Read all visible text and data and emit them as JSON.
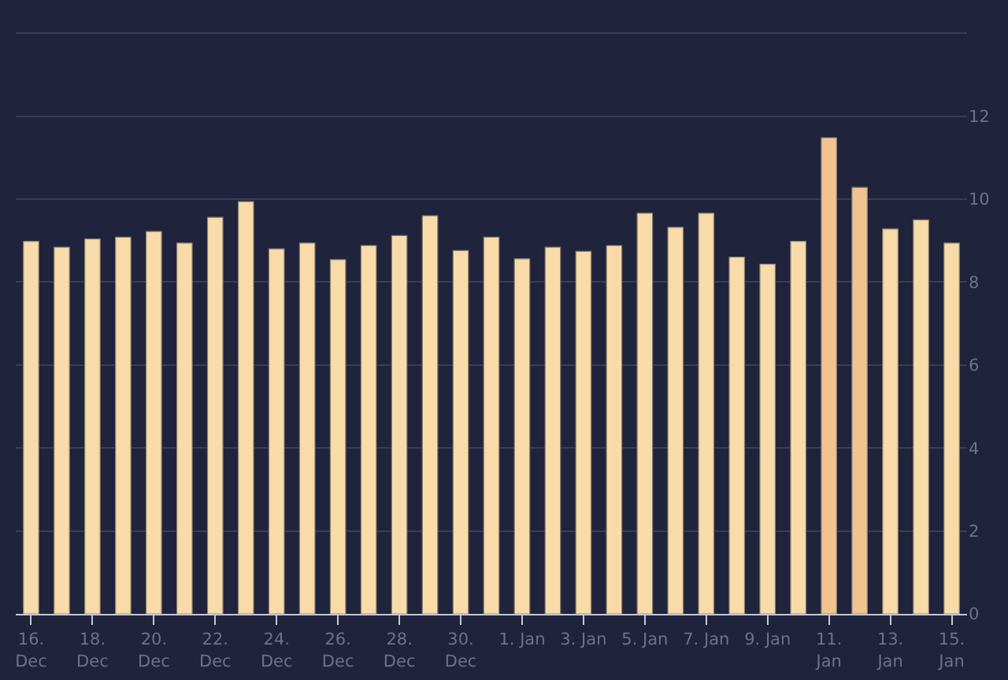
{
  "chart_data": {
    "type": "bar",
    "categories": [
      "16. Dec",
      null,
      "18. Dec",
      null,
      "20. Dec",
      null,
      "22. Dec",
      null,
      "24. Dec",
      null,
      "26. Dec",
      null,
      "28. Dec",
      null,
      "30. Dec",
      null,
      "1. Jan",
      null,
      "3. Jan",
      null,
      "5. Jan",
      null,
      "7. Jan",
      null,
      "9. Jan",
      null,
      "11. Jan",
      null,
      "13. Jan",
      null,
      "15. Jan"
    ],
    "values": [
      8.98,
      8.84,
      9.04,
      9.08,
      9.22,
      8.94,
      9.56,
      9.94,
      8.8,
      8.94,
      8.54,
      8.88,
      9.12,
      9.6,
      8.76,
      9.08,
      8.56,
      8.84,
      8.74,
      8.88,
      9.66,
      9.32,
      9.66,
      8.6,
      8.43,
      8.98,
      11.48,
      10.28,
      9.28,
      9.5,
      8.94
    ],
    "colors": [
      "#f8dba8",
      "#f8dba8",
      "#f8dba8",
      "#f8dba8",
      "#f8dba8",
      "#f8dba8",
      "#f8dba8",
      "#f8dba8",
      "#f8dba8",
      "#f8dba8",
      "#f8dba8",
      "#f8dba8",
      "#f8dba8",
      "#f8dba8",
      "#f8dba8",
      "#f8dba8",
      "#f8dba8",
      "#f8dba8",
      "#f8dba8",
      "#f8dba8",
      "#f8dba8",
      "#f8dba8",
      "#f8dba8",
      "#f8dba8",
      "#f8dba8",
      "#f8dba8",
      "#f1c48f",
      "#f1c48f",
      "#f8dba8",
      "#f8dba8",
      "#f8dba8"
    ],
    "ylim": [
      0,
      14.8
    ],
    "yticks": [
      0,
      2,
      4,
      6,
      8,
      10,
      12,
      {
        "value": 14,
        "label": null
      }
    ],
    "grid": "y"
  }
}
